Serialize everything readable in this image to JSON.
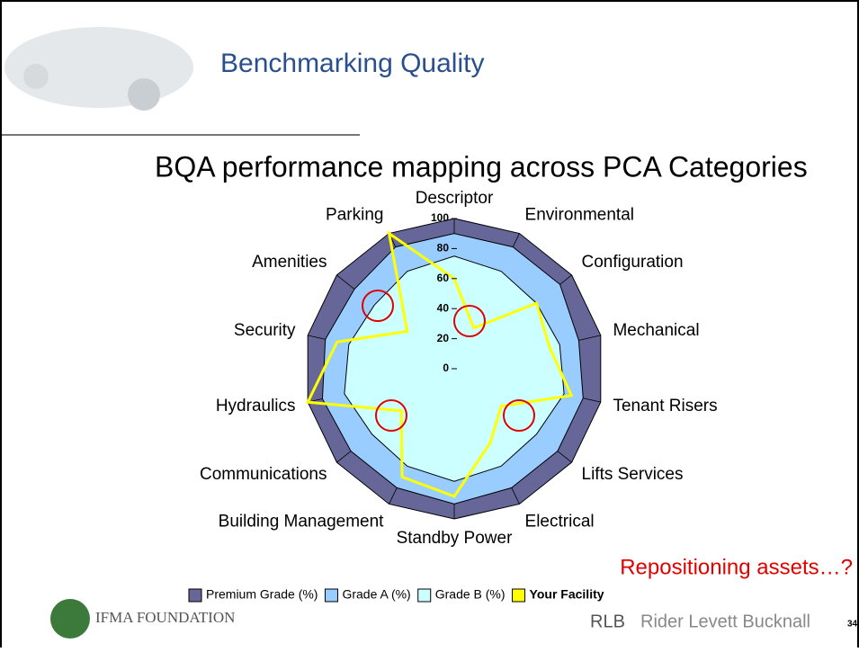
{
  "slide": {
    "title": "Benchmarking Quality",
    "subtitle": "BQA performance mapping across PCA Categories",
    "callout": "Repositioning assets…?",
    "logo_left": "IFMA FOUNDATION",
    "logo_right_brand": "RLB",
    "logo_right_name": "Rider Levett Bucknall",
    "page_number": "34"
  },
  "chart_data": {
    "type": "radar",
    "categories": [
      "Descriptor",
      "Environmental",
      "Configuration",
      "Mechanical",
      "Tenant Risers",
      "Lifts Services",
      "Electrical",
      "Standby Power",
      "Building Management",
      "Communications",
      "Hydraulics",
      "Security",
      "Amenities",
      "Parking"
    ],
    "ylim": [
      0,
      100
    ],
    "yticks": [
      0,
      20,
      40,
      60,
      80,
      100
    ],
    "series": [
      {
        "name": "Premium Grade (%)",
        "color": "#666699",
        "values": [
          100,
          100,
          100,
          100,
          100,
          100,
          100,
          100,
          100,
          100,
          100,
          100,
          100,
          100
        ]
      },
      {
        "name": "Grade A (%)",
        "color": "#99ccff",
        "values": [
          90,
          90,
          90,
          85,
          88,
          88,
          88,
          90,
          88,
          88,
          90,
          88,
          85,
          90
        ]
      },
      {
        "name": "Grade B (%)",
        "color": "#ccffff",
        "values": [
          75,
          72,
          70,
          72,
          75,
          70,
          72,
          75,
          72,
          70,
          75,
          72,
          68,
          72
        ]
      },
      {
        "name": "Your Facility",
        "color": "#ffff00",
        "values": [
          60,
          30,
          70,
          65,
          80,
          40,
          55,
          85,
          80,
          45,
          100,
          80,
          40,
          100
        ]
      }
    ]
  }
}
